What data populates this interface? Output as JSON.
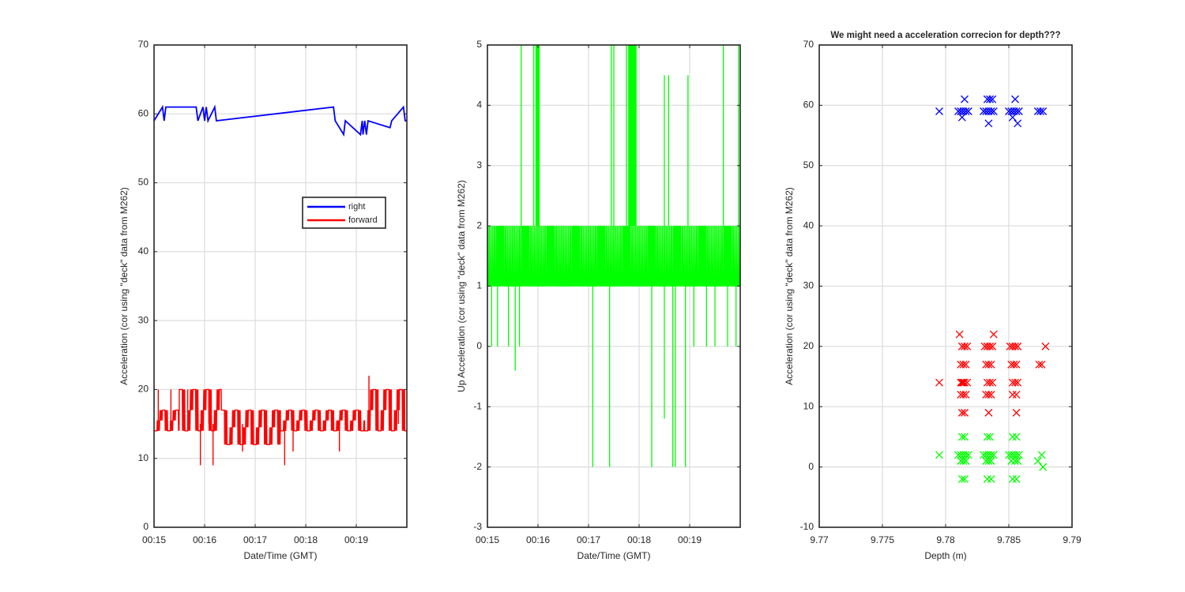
{
  "figure": {
    "colors": {
      "right": "#0000ff",
      "forward": "#ff0000",
      "up": "#00ff00",
      "grid": "#dddddd",
      "axis": "#262626"
    }
  },
  "chart_data": [
    {
      "type": "line",
      "title": "",
      "xlabel": "Date/Time (GMT)",
      "ylabel": "Acceleration (cor using \"deck\" data from M262)",
      "xlim": [
        "00:15",
        "00:20"
      ],
      "ylim": [
        0,
        70
      ],
      "xticks": [
        "00:15",
        "00:16",
        "00:17",
        "00:18",
        "00:19"
      ],
      "yticks": [
        0,
        10,
        20,
        30,
        40,
        50,
        60,
        70
      ],
      "grid": true,
      "legend": {
        "position": "center-right",
        "entries": [
          "right",
          "forward"
        ]
      },
      "series": [
        {
          "name": "right",
          "color": "#0000ff",
          "baseline": 59,
          "x": [
            "00:15:00",
            "00:15:10",
            "00:15:12",
            "00:15:14",
            "00:15:50",
            "00:15:52",
            "00:15:58",
            "00:16:00",
            "00:16:02",
            "00:16:04",
            "00:16:12",
            "00:16:14",
            "00:18:33",
            "00:18:35",
            "00:18:45",
            "00:18:47",
            "00:19:05",
            "00:19:07",
            "00:19:08",
            "00:19:10",
            "00:19:12",
            "00:19:14",
            "00:19:40",
            "00:19:42",
            "00:19:56",
            "00:19:58",
            "00:20:00"
          ],
          "y": [
            59,
            61,
            59,
            61,
            61,
            59,
            61,
            59,
            61,
            59,
            61,
            59,
            61,
            59,
            57,
            59,
            57,
            59,
            57,
            59,
            57,
            59,
            58,
            59,
            61,
            59,
            59
          ]
        },
        {
          "name": "forward",
          "color": "#ff0000",
          "band": {
            "x_segments": [
              [
                "00:15:00",
                "00:15:30"
              ],
              [
                "00:15:30",
                "00:16:20"
              ],
              [
                "00:16:20",
                "00:17:30"
              ],
              [
                "00:17:30",
                "00:19:10"
              ],
              [
                "00:19:10",
                "00:20:00"
              ]
            ],
            "low": [
              14,
              14,
              12,
              14,
              14
            ],
            "high": [
              17,
              20,
              17,
              17,
              20
            ]
          },
          "spikes": {
            "x": [
              "00:15:05",
              "00:15:20",
              "00:15:40",
              "00:15:55",
              "00:16:05",
              "00:16:10",
              "00:16:45",
              "00:17:35",
              "00:17:45",
              "00:18:40",
              "00:19:15",
              "00:19:50"
            ],
            "y": [
              20,
              20,
              20,
              9,
              20,
              9,
              11,
              9,
              11,
              11,
              22,
              20
            ]
          }
        }
      ]
    },
    {
      "type": "line",
      "title": "",
      "xlabel": "Date/Time (GMT)",
      "ylabel": "Up Acceleration (cor using \"deck\" data from M262)",
      "xlim": [
        "00:15",
        "00:20"
      ],
      "ylim": [
        -3,
        5
      ],
      "xticks": [
        "00:15",
        "00:16",
        "00:17",
        "00:18",
        "00:19"
      ],
      "yticks": [
        -3,
        -2,
        -1,
        0,
        1,
        2,
        3,
        4,
        5
      ],
      "grid": true,
      "series": [
        {
          "name": "",
          "color": "#00ff00",
          "band": {
            "low": 1,
            "high": 2
          },
          "dense_clusters": [
            [
              "00:15:57",
              "00:16:02"
            ],
            [
              "00:17:47",
              "00:17:57"
            ]
          ],
          "spikes_up": {
            "x": [
              "00:15:40",
              "00:15:55",
              "00:16:00",
              "00:17:27",
              "00:17:30",
              "00:17:45",
              "00:17:48",
              "00:17:50",
              "00:18:30",
              "00:18:35",
              "00:18:58",
              "00:19:40",
              "00:19:58"
            ],
            "y": [
              5,
              5,
              5,
              5,
              5,
              5,
              5,
              5,
              4.5,
              4.5,
              4.5,
              5,
              5
            ]
          },
          "spikes_down": {
            "x": [
              "00:15:05",
              "00:15:12",
              "00:15:25",
              "00:15:33",
              "00:15:38",
              "00:17:05",
              "00:17:25",
              "00:18:15",
              "00:18:30",
              "00:18:40",
              "00:18:43",
              "00:18:55",
              "00:19:05",
              "00:19:20",
              "00:19:30",
              "00:19:45",
              "00:19:55"
            ],
            "y": [
              0,
              0,
              0,
              -0.4,
              0,
              -2,
              -2,
              -2,
              -1.2,
              -2,
              -2,
              -2,
              0,
              0,
              0,
              0,
              0
            ]
          }
        }
      ]
    },
    {
      "type": "scatter",
      "title": "We might need a acceleration correcion for depth???",
      "xlabel": "Depth (m)",
      "ylabel": "Acceleration (cor using \"deck\" data from M262)",
      "xlim": [
        9.77,
        9.79
      ],
      "ylim": [
        -10,
        70
      ],
      "xticks": [
        "9.77",
        "9.775",
        "9.78",
        "9.785",
        "9.79"
      ],
      "yticks": [
        -10,
        0,
        10,
        20,
        30,
        40,
        50,
        60,
        70
      ],
      "grid": true,
      "marker": "x",
      "series": [
        {
          "name": "",
          "color": "#0000ff",
          "x": [
            9.7795,
            9.781,
            9.7812,
            9.7814,
            9.7816,
            9.7818,
            9.7815,
            9.7813,
            9.783,
            9.7832,
            9.7834,
            9.7836,
            9.7838,
            9.7833,
            9.7835,
            9.7837,
            9.7834,
            9.785,
            9.7852,
            9.7854,
            9.7856,
            9.7858,
            9.7855,
            9.7853,
            9.7857,
            9.7873,
            9.7875,
            9.7877
          ],
          "y": [
            59,
            59,
            59,
            59,
            59,
            59,
            61,
            58,
            59,
            59,
            59,
            59,
            59,
            61,
            61,
            61,
            57,
            59,
            59,
            59,
            59,
            59,
            61,
            58,
            57,
            59,
            59,
            59
          ]
        },
        {
          "name": "",
          "color": "#ff0000",
          "x": [
            9.7795,
            9.7811,
            9.7813,
            9.7815,
            9.7817,
            9.7812,
            9.7814,
            9.7816,
            9.7813,
            9.7815,
            9.7817,
            9.7812,
            9.7814,
            9.7816,
            9.7813,
            9.7815,
            9.7812,
            9.7814,
            9.7831,
            9.7833,
            9.7835,
            9.7837,
            9.7832,
            9.7834,
            9.7836,
            9.7833,
            9.7835,
            9.7837,
            9.7832,
            9.7834,
            9.7836,
            9.7834,
            9.7838,
            9.7851,
            9.7853,
            9.7855,
            9.7857,
            9.7852,
            9.7854,
            9.7856,
            9.7853,
            9.7855,
            9.7857,
            9.7853,
            9.7856,
            9.7856,
            9.7874,
            9.7876,
            9.7879
          ],
          "y": [
            14,
            22,
            20,
            20,
            20,
            17,
            17,
            17,
            14,
            14,
            14,
            12,
            12,
            12,
            9,
            9,
            14,
            14,
            20,
            20,
            20,
            20,
            17,
            17,
            17,
            14,
            14,
            14,
            12,
            12,
            12,
            9,
            22,
            20,
            20,
            20,
            20,
            17,
            17,
            17,
            14,
            14,
            14,
            12,
            12,
            9,
            17,
            17,
            20
          ]
        },
        {
          "name": "",
          "color": "#00ff00",
          "x": [
            9.7795,
            9.781,
            9.7812,
            9.7814,
            9.7816,
            9.7818,
            9.7813,
            9.7815,
            9.7812,
            9.7814,
            9.7816,
            9.7813,
            9.7815,
            9.783,
            9.7832,
            9.7834,
            9.7836,
            9.7838,
            9.7833,
            9.7835,
            9.7832,
            9.7834,
            9.7836,
            9.7833,
            9.7836,
            9.785,
            9.7852,
            9.7854,
            9.7856,
            9.7858,
            9.7853,
            9.7856,
            9.7852,
            9.7855,
            9.7857,
            9.7853,
            9.7856,
            9.7873,
            9.7876,
            9.7877
          ],
          "y": [
            2,
            2,
            2,
            2,
            2,
            2,
            5,
            5,
            1,
            1,
            1,
            -2,
            -2,
            2,
            2,
            2,
            2,
            2,
            5,
            5,
            1,
            1,
            1,
            -2,
            -2,
            2,
            2,
            2,
            2,
            2,
            5,
            5,
            1,
            1,
            1,
            -2,
            -2,
            1,
            2,
            0
          ]
        }
      ]
    }
  ]
}
